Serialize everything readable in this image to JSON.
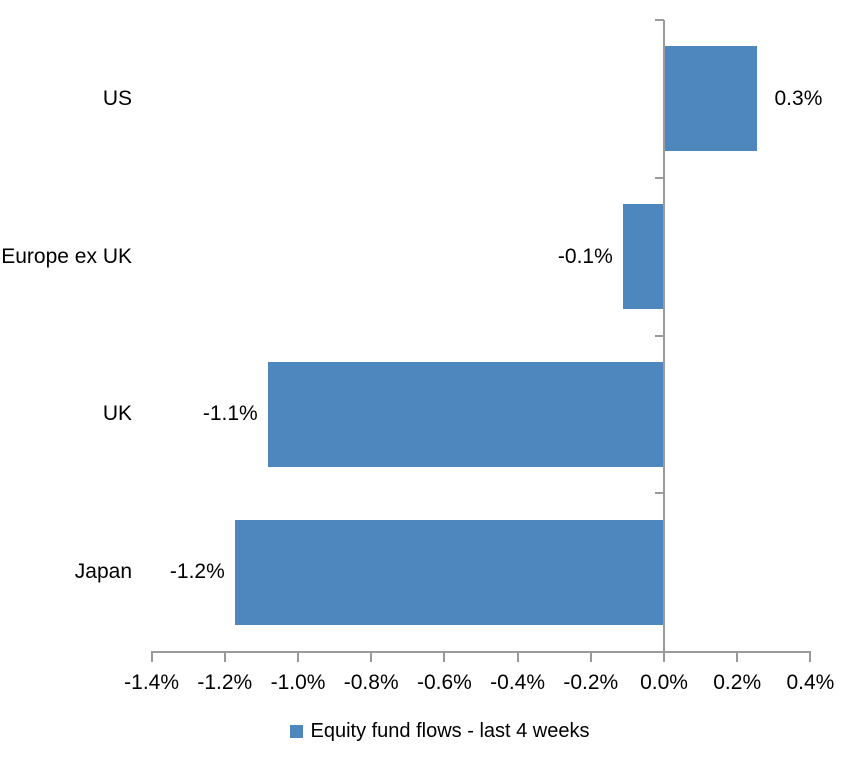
{
  "page": {
    "background_color": "#FFFFFF"
  },
  "chart_data": {
    "type": "bar",
    "orientation": "horizontal",
    "title": "",
    "xlabel": "",
    "ylabel": "",
    "categories": [
      "US",
      "Europe ex UK",
      "UK",
      "Japan"
    ],
    "values": [
      0.3,
      -0.1,
      -1.1,
      -1.2
    ],
    "value_unit": "%",
    "value_labels": [
      "0.3%",
      "-0.1%",
      "-1.1%",
      "-1.2%"
    ],
    "plotted_values_pct": [
      0.25,
      -0.11,
      -1.08,
      -1.17
    ],
    "series_name": "Equity fund flows - last 4 weeks",
    "xlim": [
      -1.4,
      0.4
    ],
    "x_tick_values": [
      -1.4,
      -1.2,
      -1.0,
      -0.8,
      -0.6,
      -0.4,
      -0.2,
      0.0,
      0.2,
      0.4
    ],
    "x_tick_labels": [
      "-1.4%",
      "-1.2%",
      "-1.0%",
      "-0.8%",
      "-0.6%",
      "-0.4%",
      "-0.2%",
      "0.0%",
      "0.2%",
      "0.4%"
    ],
    "grid": "off",
    "legend_position": "bottom",
    "colors": {
      "bar": "#4E87BE",
      "axis": "#9A9A9A",
      "text": "#000000",
      "background": "#FFFFFF"
    }
  }
}
